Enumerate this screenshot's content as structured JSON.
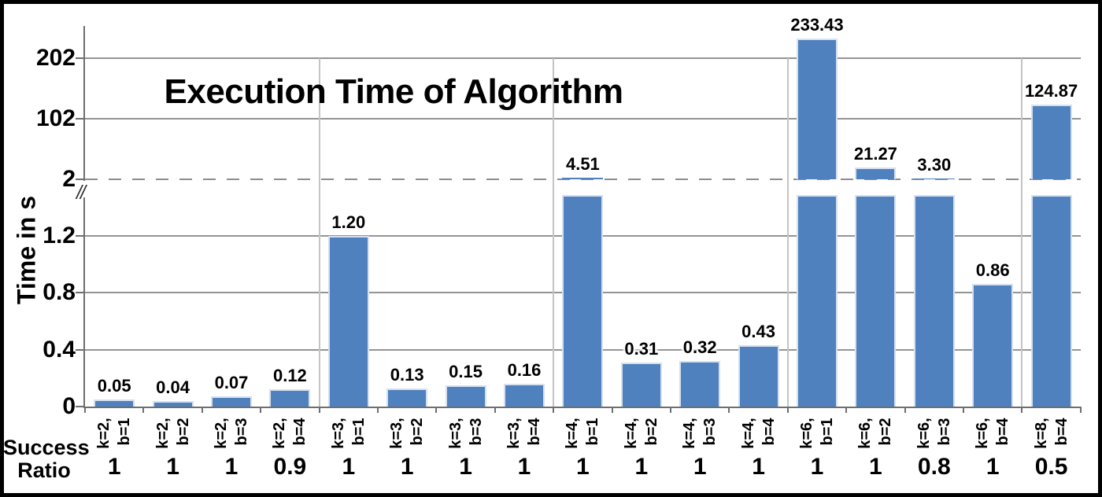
{
  "chart_data": {
    "type": "bar",
    "title": "Execution Time of Algorithm",
    "ylabel": "Time in s",
    "xlabel": "",
    "legend": "none",
    "grid": "on",
    "success_ratio_header": [
      "Success",
      "Ratio"
    ],
    "y_axis": {
      "broken": true,
      "break_mark": "//",
      "lower_ticks": [
        "0",
        "0.4",
        "0.8",
        "1.2"
      ],
      "upper_ticks": [
        "2",
        "102",
        "202"
      ],
      "lower_range": [
        0,
        1.47
      ],
      "upper_range": [
        2,
        252
      ]
    },
    "categories": [
      {
        "k": "k=2,",
        "b": "b=1",
        "value": 0.05,
        "label": "0.05",
        "success": "1"
      },
      {
        "k": "k=2,",
        "b": "b=2",
        "value": 0.04,
        "label": "0.04",
        "success": "1"
      },
      {
        "k": "k=2,",
        "b": "b=3",
        "value": 0.07,
        "label": "0.07",
        "success": "1"
      },
      {
        "k": "k=2,",
        "b": "b=4",
        "value": 0.12,
        "label": "0.12",
        "success": "0.9"
      },
      {
        "k": "k=3,",
        "b": "b=1",
        "value": 1.2,
        "label": "1.20",
        "success": "1"
      },
      {
        "k": "k=3,",
        "b": "b=2",
        "value": 0.13,
        "label": "0.13",
        "success": "1"
      },
      {
        "k": "k=3,",
        "b": "b=3",
        "value": 0.15,
        "label": "0.15",
        "success": "1"
      },
      {
        "k": "k=3,",
        "b": "b=4",
        "value": 0.16,
        "label": "0.16",
        "success": "1"
      },
      {
        "k": "k=4,",
        "b": "b=1",
        "value": 4.51,
        "label": "4.51",
        "success": "1"
      },
      {
        "k": "k=4,",
        "b": "b=2",
        "value": 0.31,
        "label": "0.31",
        "success": "1"
      },
      {
        "k": "k=4,",
        "b": "b=3",
        "value": 0.32,
        "label": "0.32",
        "success": "1"
      },
      {
        "k": "k=4,",
        "b": "b=4",
        "value": 0.43,
        "label": "0.43",
        "success": "1"
      },
      {
        "k": "k=6,",
        "b": "b=1",
        "value": 233.43,
        "label": "233.43",
        "success": "1"
      },
      {
        "k": "k=6,",
        "b": "b=2",
        "value": 21.27,
        "label": "21.27",
        "success": "1"
      },
      {
        "k": "k=6,",
        "b": "b=3",
        "value": 3.3,
        "label": "3.30",
        "success": "0.8"
      },
      {
        "k": "k=6,",
        "b": "b=4",
        "value": 0.86,
        "label": "0.86",
        "success": "1"
      },
      {
        "k": "k=8,",
        "b": "b=4",
        "value": 124.87,
        "label": "124.87",
        "success": "0.5"
      }
    ]
  },
  "colors": {
    "bar": "#4E81BD",
    "bar_edge": "#D6E0EF",
    "gridline": "#949494",
    "dashed_gridline": "#8C8C8C",
    "group_separator": "#C4C4C4",
    "axis": "#6E6E6E",
    "text": "#000000",
    "frame_border": "#000000",
    "background": "#FFFFFF"
  }
}
